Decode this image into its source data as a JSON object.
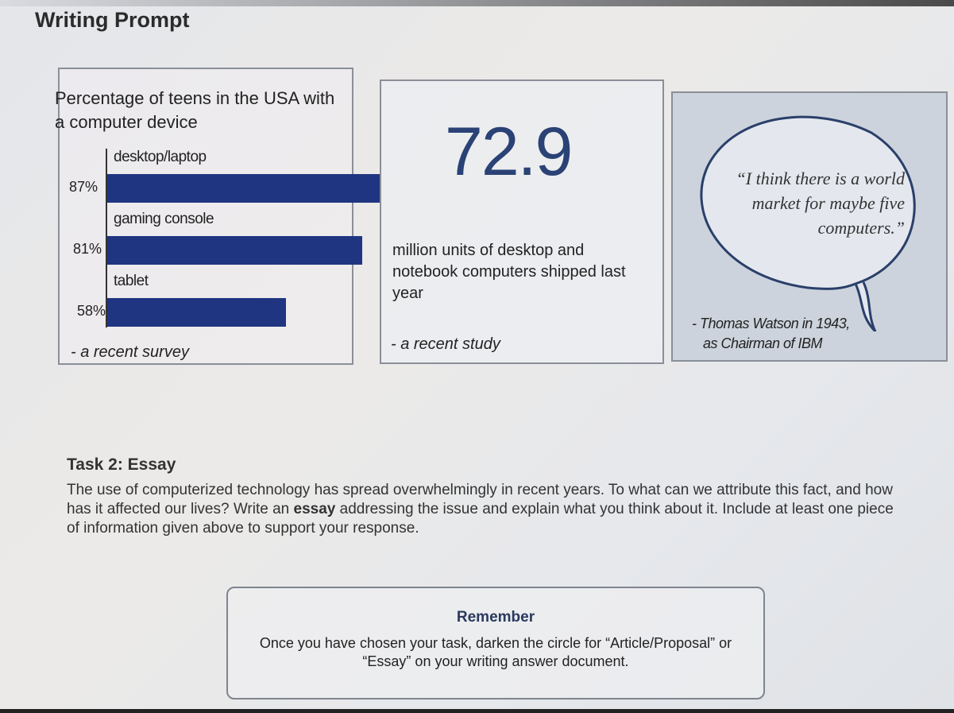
{
  "page_title": "Writing Prompt",
  "chart_data": {
    "type": "bar",
    "orientation": "horizontal",
    "title": "Percentage of teens in the USA with a computer device",
    "categories": [
      "desktop/laptop",
      "gaming console",
      "tablet"
    ],
    "values": [
      87,
      81,
      58
    ],
    "labels": [
      "87%",
      "81%",
      "58%"
    ],
    "unit": "%",
    "xlim": [
      0,
      100
    ],
    "bar_color": "#1f3581",
    "source": "- a recent survey"
  },
  "stat": {
    "number": "72.9",
    "description": "million units of desktop and notebook computers shipped last year",
    "source": "- a recent study",
    "color": "#2a4275"
  },
  "quote": {
    "text": "“I think there is a world market for maybe five computers.”",
    "attribution_line1": "- Thomas Watson in 1943,",
    "attribution_line2": "as Chairman of IBM"
  },
  "task": {
    "heading": "Task 2:  Essay",
    "body_before": "The use of computerized technology has spread overwhelmingly in recent years. To what can we attribute this fact, and how has it affected our lives? Write an ",
    "body_bold": "essay",
    "body_after": " addressing the issue and explain what you think about it. Include at least one piece of information given above to support your response."
  },
  "remember": {
    "heading": "Remember",
    "text": "Once you have chosen your task, darken the circle for “Article/Proposal” or “Essay” on your writing answer document."
  }
}
